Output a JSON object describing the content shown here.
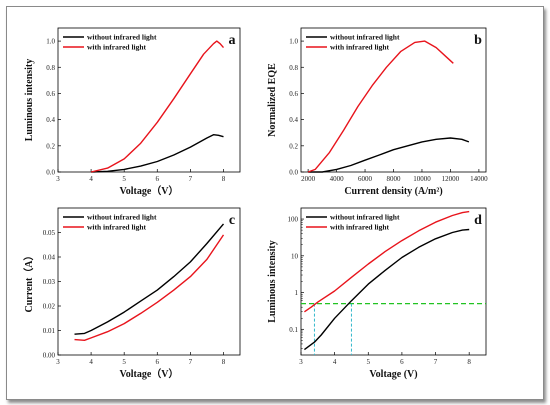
{
  "colors": {
    "without": "#000000",
    "with": "#e8141c",
    "guide_green": "#22c322",
    "guide_cyan": "#33b8cc"
  },
  "chart_data": [
    {
      "id": "a",
      "type": "line",
      "panel_label": "a",
      "xlabel": "Voltage（V）",
      "ylabel": "Luminous intensity",
      "xlim": [
        3,
        8.5
      ],
      "ylim": [
        0,
        1.1
      ],
      "xticks": [
        3,
        4,
        5,
        6,
        7,
        8
      ],
      "yticks": [
        0.0,
        0.2,
        0.4,
        0.6,
        0.8,
        1.0
      ],
      "ytick_labels": [
        "0.0",
        "0.2",
        "0.4",
        "0.6",
        "0.8",
        "1.0"
      ],
      "legend": "top-left",
      "series": [
        {
          "name": "without infrared light",
          "color_key": "without",
          "points": [
            [
              4.0,
              0.0
            ],
            [
              4.5,
              0.005
            ],
            [
              5.0,
              0.02
            ],
            [
              5.5,
              0.045
            ],
            [
              6.0,
              0.08
            ],
            [
              6.5,
              0.13
            ],
            [
              7.0,
              0.19
            ],
            [
              7.5,
              0.26
            ],
            [
              7.7,
              0.285
            ],
            [
              7.85,
              0.28
            ],
            [
              8.0,
              0.27
            ]
          ]
        },
        {
          "name": "with infrared light",
          "color_key": "with",
          "points": [
            [
              4.0,
              0.0
            ],
            [
              4.5,
              0.03
            ],
            [
              5.0,
              0.1
            ],
            [
              5.5,
              0.22
            ],
            [
              6.0,
              0.38
            ],
            [
              6.5,
              0.56
            ],
            [
              7.0,
              0.75
            ],
            [
              7.4,
              0.9
            ],
            [
              7.7,
              0.98
            ],
            [
              7.8,
              1.0
            ],
            [
              7.9,
              0.98
            ],
            [
              8.0,
              0.95
            ]
          ]
        }
      ]
    },
    {
      "id": "b",
      "type": "line",
      "panel_label": "b",
      "xlabel": "Current density (A/m²)",
      "ylabel": "Normalized EQE",
      "xlim": [
        1500,
        14500
      ],
      "ylim": [
        0,
        1.1
      ],
      "xticks": [
        2000,
        4000,
        6000,
        8000,
        10000,
        12000,
        14000
      ],
      "yticks": [
        0.0,
        0.2,
        0.4,
        0.6,
        0.8,
        1.0
      ],
      "ytick_labels": [
        "0.0",
        "0.2",
        "0.4",
        "0.6",
        "0.8",
        "1.0"
      ],
      "legend": "top-left",
      "series": [
        {
          "name": "without infrared light",
          "color_key": "without",
          "points": [
            [
              2000,
              0.0
            ],
            [
              3000,
              0.0
            ],
            [
              4000,
              0.02
            ],
            [
              5000,
              0.05
            ],
            [
              6000,
              0.09
            ],
            [
              7000,
              0.13
            ],
            [
              8000,
              0.17
            ],
            [
              9000,
              0.2
            ],
            [
              10000,
              0.23
            ],
            [
              11000,
              0.25
            ],
            [
              12000,
              0.26
            ],
            [
              12800,
              0.25
            ],
            [
              13300,
              0.23
            ]
          ]
        },
        {
          "name": "with infrared light",
          "color_key": "with",
          "points": [
            [
              2000,
              0.0
            ],
            [
              2500,
              0.02
            ],
            [
              3500,
              0.15
            ],
            [
              4500,
              0.32
            ],
            [
              5500,
              0.5
            ],
            [
              6500,
              0.66
            ],
            [
              7500,
              0.8
            ],
            [
              8500,
              0.92
            ],
            [
              9500,
              0.99
            ],
            [
              10200,
              1.0
            ],
            [
              11000,
              0.95
            ],
            [
              11700,
              0.88
            ],
            [
              12200,
              0.83
            ]
          ]
        }
      ]
    },
    {
      "id": "c",
      "type": "line",
      "panel_label": "c",
      "xlabel": "Voltage（V）",
      "ylabel": "Current（A）",
      "xlim": [
        3,
        8.5
      ],
      "ylim": [
        0,
        0.06
      ],
      "xticks": [
        3,
        4,
        5,
        6,
        7,
        8
      ],
      "yticks": [
        0.0,
        0.01,
        0.02,
        0.03,
        0.04,
        0.05
      ],
      "ytick_labels": [
        "0.00",
        "0.01",
        "0.02",
        "0.03",
        "0.04",
        "0.05"
      ],
      "legend": "top-left",
      "series": [
        {
          "name": "without infrared light",
          "color_key": "without",
          "points": [
            [
              3.5,
              0.0085
            ],
            [
              3.8,
              0.0088
            ],
            [
              4.0,
              0.01
            ],
            [
              4.5,
              0.0135
            ],
            [
              5.0,
              0.0175
            ],
            [
              5.5,
              0.022
            ],
            [
              6.0,
              0.0265
            ],
            [
              6.5,
              0.032
            ],
            [
              7.0,
              0.038
            ],
            [
              7.5,
              0.0455
            ],
            [
              8.0,
              0.0535
            ]
          ]
        },
        {
          "name": "with infrared light",
          "color_key": "with",
          "points": [
            [
              3.5,
              0.0063
            ],
            [
              3.8,
              0.006
            ],
            [
              4.0,
              0.007
            ],
            [
              4.5,
              0.0095
            ],
            [
              5.0,
              0.0128
            ],
            [
              5.5,
              0.017
            ],
            [
              6.0,
              0.0215
            ],
            [
              6.5,
              0.0265
            ],
            [
              7.0,
              0.032
            ],
            [
              7.5,
              0.039
            ],
            [
              8.0,
              0.049
            ]
          ]
        }
      ]
    },
    {
      "id": "d",
      "type": "line",
      "panel_label": "d",
      "yscale": "log",
      "xlabel": "Voltage (V)",
      "ylabel": "Luminous intensity",
      "xlim": [
        3,
        8.5
      ],
      "ylim": [
        0.02,
        200
      ],
      "xticks": [
        3,
        4,
        5,
        6,
        7,
        8
      ],
      "yticks": [
        0.1,
        1,
        10,
        100
      ],
      "ytick_labels": [
        "0.1",
        "1",
        "10",
        "100"
      ],
      "legend": "top-left",
      "hline": 0.5,
      "vlines": [
        3.4,
        4.5
      ],
      "series": [
        {
          "name": "without infrared light",
          "color_key": "without",
          "points": [
            [
              3.1,
              0.028
            ],
            [
              3.4,
              0.045
            ],
            [
              3.6,
              0.07
            ],
            [
              4.0,
              0.2
            ],
            [
              4.5,
              0.6
            ],
            [
              5.0,
              1.7
            ],
            [
              5.5,
              4.0
            ],
            [
              6.0,
              9.0
            ],
            [
              6.5,
              17
            ],
            [
              7.0,
              29
            ],
            [
              7.5,
              43
            ],
            [
              7.8,
              50
            ],
            [
              8.0,
              52
            ]
          ]
        },
        {
          "name": "with infrared light",
          "color_key": "with",
          "points": [
            [
              3.1,
              0.3
            ],
            [
              3.3,
              0.4
            ],
            [
              3.5,
              0.55
            ],
            [
              4.0,
              1.1
            ],
            [
              4.5,
              2.6
            ],
            [
              5.0,
              6.0
            ],
            [
              5.5,
              13
            ],
            [
              6.0,
              26
            ],
            [
              6.5,
              48
            ],
            [
              7.0,
              82
            ],
            [
              7.5,
              125
            ],
            [
              7.8,
              150
            ],
            [
              8.0,
              160
            ]
          ]
        }
      ]
    }
  ]
}
